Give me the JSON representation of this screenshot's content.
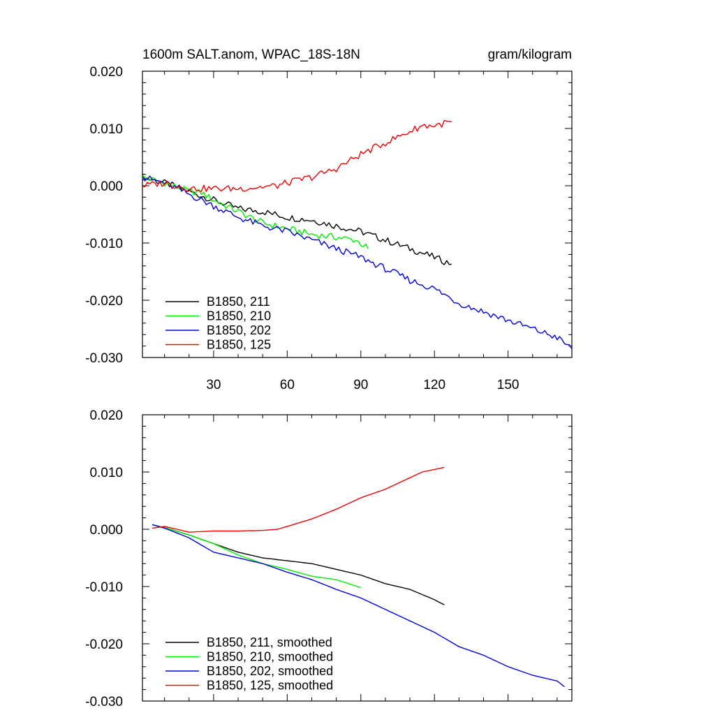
{
  "chart_data": [
    {
      "type": "line",
      "title_left": "1600m SALT.anom, WPAC_18S-18N",
      "title_right": "gram/kilogram",
      "xlabel": "",
      "ylabel": "",
      "xlim": [
        1,
        176
      ],
      "ylim": [
        -0.03,
        0.02
      ],
      "xticks": [
        30,
        60,
        90,
        120,
        150
      ],
      "xticklabels": [
        "30",
        "60",
        "90",
        "120",
        "150"
      ],
      "yticks": [
        0.02,
        0.01,
        0.0,
        -0.01,
        -0.02,
        -0.03
      ],
      "yticklabels": [
        "0.020",
        "0.010",
        "0.000",
        "-0.010",
        "-0.020",
        "-0.030"
      ],
      "grid": false,
      "legend_position": "bottom-left",
      "series": [
        {
          "name": "B1850, 211",
          "color": "#000000",
          "x": [
            1,
            10,
            20,
            30,
            40,
            50,
            60,
            70,
            80,
            90,
            100,
            110,
            120,
            127
          ],
          "y": [
            0.0015,
            0.0005,
            -0.001,
            -0.0025,
            -0.004,
            -0.0045,
            -0.0055,
            -0.006,
            -0.007,
            -0.008,
            -0.0095,
            -0.011,
            -0.0125,
            -0.0137
          ]
        },
        {
          "name": "B1850, 210",
          "color": "#00ee00",
          "x": [
            1,
            10,
            20,
            25,
            30,
            40,
            50,
            60,
            70,
            80,
            88,
            93
          ],
          "y": [
            0.0015,
            0.0005,
            -0.001,
            -0.0012,
            -0.0025,
            -0.0045,
            -0.0065,
            -0.0075,
            -0.0085,
            -0.009,
            -0.0095,
            -0.011
          ]
        },
        {
          "name": "B1850, 202",
          "color": "#0000dd",
          "x": [
            1,
            10,
            20,
            30,
            40,
            50,
            60,
            70,
            80,
            90,
            100,
            110,
            120,
            130,
            140,
            150,
            160,
            170,
            176
          ],
          "y": [
            0.0015,
            0.0005,
            -0.0015,
            -0.0035,
            -0.0055,
            -0.007,
            -0.008,
            -0.0095,
            -0.011,
            -0.0125,
            -0.0145,
            -0.0165,
            -0.018,
            -0.0205,
            -0.022,
            -0.0235,
            -0.025,
            -0.0265,
            -0.0285
          ]
        },
        {
          "name": "B1850, 125",
          "color": "#ee0000",
          "x": [
            1,
            10,
            20,
            30,
            40,
            50,
            56,
            60,
            70,
            80,
            90,
            100,
            110,
            115,
            120,
            127
          ],
          "y": [
            0.0,
            0.0005,
            -0.0005,
            -0.0005,
            -0.0005,
            -0.0002,
            0.0,
            0.0005,
            0.0015,
            0.003,
            0.0055,
            0.0075,
            0.0095,
            0.0105,
            0.0105,
            0.0112
          ]
        }
      ]
    },
    {
      "type": "line",
      "xlim": [
        1,
        176
      ],
      "ylim": [
        -0.03,
        0.02
      ],
      "xticks": [
        30,
        60,
        90,
        120,
        150
      ],
      "yticks": [
        0.02,
        0.01,
        0.0,
        -0.01,
        -0.02,
        -0.03
      ],
      "yticklabels": [
        "0.020",
        "0.010",
        "0.000",
        "-0.010",
        "-0.020",
        "-0.030"
      ],
      "grid": false,
      "legend_position": "bottom-left",
      "series": [
        {
          "name": "B1850, 211, smoothed",
          "color": "#000000",
          "x": [
            5,
            10,
            20,
            30,
            40,
            50,
            60,
            70,
            80,
            90,
            100,
            110,
            120,
            124
          ],
          "y": [
            0.0008,
            0.0003,
            -0.001,
            -0.0025,
            -0.004,
            -0.005,
            -0.0055,
            -0.006,
            -0.007,
            -0.008,
            -0.0095,
            -0.0105,
            -0.0123,
            -0.0132
          ]
        },
        {
          "name": "B1850, 210, smoothed",
          "color": "#00ee00",
          "x": [
            5,
            10,
            20,
            30,
            40,
            50,
            60,
            70,
            80,
            90
          ],
          "y": [
            0.0008,
            0.0003,
            -0.001,
            -0.0025,
            -0.0045,
            -0.006,
            -0.007,
            -0.0082,
            -0.0088,
            -0.0102
          ]
        },
        {
          "name": "B1850, 202, smoothed",
          "color": "#0000dd",
          "x": [
            5,
            10,
            20,
            30,
            40,
            50,
            60,
            70,
            80,
            90,
            100,
            110,
            120,
            130,
            140,
            150,
            160,
            170,
            173
          ],
          "y": [
            0.0008,
            0.0002,
            -0.0015,
            -0.004,
            -0.005,
            -0.006,
            -0.0075,
            -0.0088,
            -0.0105,
            -0.012,
            -0.014,
            -0.016,
            -0.018,
            -0.0205,
            -0.022,
            -0.024,
            -0.0255,
            -0.0265,
            -0.0275
          ]
        },
        {
          "name": "B1850, 125, smoothed",
          "color": "#ee0000",
          "x": [
            5,
            10,
            20,
            30,
            40,
            50,
            56,
            60,
            70,
            80,
            90,
            100,
            110,
            115,
            124
          ],
          "y": [
            0.0002,
            0.0005,
            -0.0005,
            -0.0003,
            -0.0003,
            -0.0002,
            0.0,
            0.0005,
            0.0018,
            0.0035,
            0.0055,
            0.007,
            0.009,
            0.01,
            0.0108
          ]
        }
      ]
    }
  ]
}
